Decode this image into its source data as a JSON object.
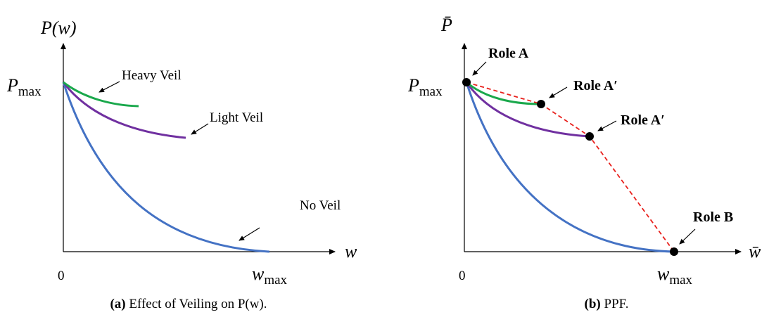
{
  "panel_a": {
    "y_axis_label": "P(w)",
    "x_axis_label": "w",
    "y_max_label": {
      "base": "P",
      "sub": "max"
    },
    "origin_label": "0",
    "x_max_label": {
      "base": "w",
      "sub": "max"
    },
    "curve_labels": [
      "Heavy Veil",
      "Light Veil",
      "No Veil"
    ],
    "caption": {
      "tag": "(a)",
      "text": "Effect of Veiling on P(w)."
    }
  },
  "panel_b": {
    "y_axis_label": "P̄",
    "x_axis_label": "w̄",
    "y_max_label": {
      "base": "P",
      "sub": "max"
    },
    "origin_label": "0",
    "x_max_label": {
      "base": "w",
      "sub": "max"
    },
    "point_labels": [
      "Role A",
      "Role A′",
      "Role A′",
      "Role B"
    ],
    "caption": {
      "tag": "(b)",
      "text": "PPF."
    }
  }
}
